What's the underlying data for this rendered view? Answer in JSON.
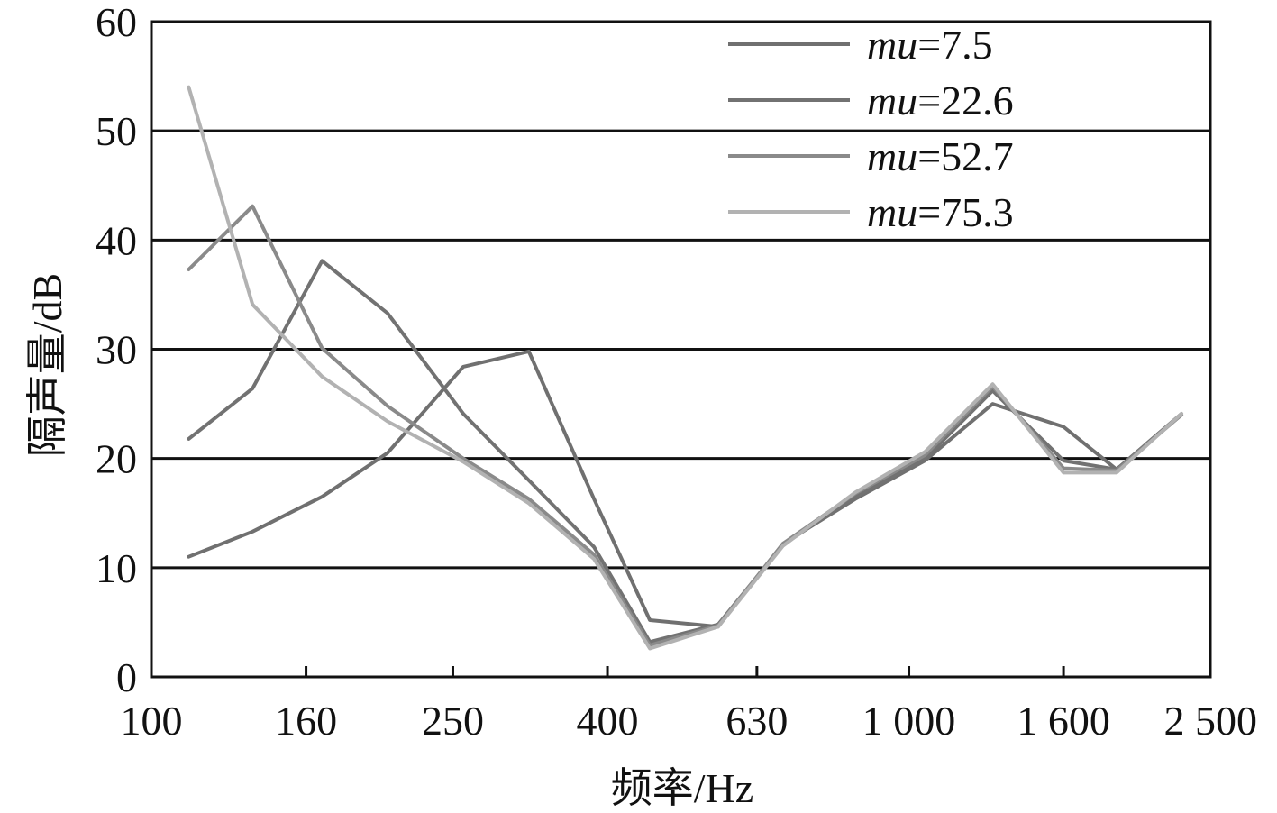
{
  "chart_data": {
    "type": "line",
    "title": "",
    "xlabel": "频率/Hz",
    "ylabel": "隔声量/dB",
    "x_scale": "log",
    "xlim": [
      100,
      2500
    ],
    "ylim": [
      0,
      60
    ],
    "x_ticks": [
      100,
      160,
      250,
      400,
      630,
      1000,
      1600,
      2500
    ],
    "x_tick_labels": [
      "100",
      "160",
      "250",
      "400",
      "630",
      "1 000",
      "1 600",
      "2 500"
    ],
    "y_ticks": [
      0,
      10,
      20,
      30,
      40,
      50,
      60
    ],
    "y_tick_labels": [
      "0",
      "10",
      "20",
      "30",
      "40",
      "50",
      "60"
    ],
    "grid": "horizontal",
    "legend_position": "top-right",
    "x": [
      112,
      136,
      168,
      205,
      258,
      315,
      384,
      455,
      560,
      682,
      850,
      1050,
      1290,
      1600,
      1880,
      2290
    ],
    "series": [
      {
        "name_prefix": "mu",
        "name_suffix": "=7.5",
        "color": "#707070",
        "values": [
          11,
          13.3,
          16.5,
          20.5,
          28.4,
          29.8,
          16.3,
          5.2,
          4.6,
          12.2,
          16.3,
          19.8,
          25,
          22.9,
          19,
          24
        ]
      },
      {
        "name_prefix": "mu",
        "name_suffix": "=22.6",
        "color": "#727272",
        "values": [
          21.8,
          26.4,
          38.1,
          33.3,
          24.1,
          18,
          11.9,
          3.2,
          4.8,
          12.1,
          16.5,
          20,
          26.2,
          19.8,
          19,
          24.1
        ]
      },
      {
        "name_prefix": "mu",
        "name_suffix": "=52.7",
        "color": "#8a8a8a",
        "values": [
          37.3,
          43.1,
          30.1,
          24.8,
          20,
          16.3,
          11.2,
          2.9,
          4.7,
          12.2,
          16.8,
          20.3,
          26.6,
          19.1,
          18.9,
          24
        ]
      },
      {
        "name_prefix": "mu",
        "name_suffix": "=75.3",
        "color": "#b2b2b2",
        "values": [
          54,
          34.1,
          27.5,
          23.4,
          19.7,
          15.9,
          10.8,
          2.6,
          4.6,
          12,
          16.9,
          20.6,
          26.8,
          18.7,
          18.7,
          24.1
        ]
      }
    ]
  }
}
